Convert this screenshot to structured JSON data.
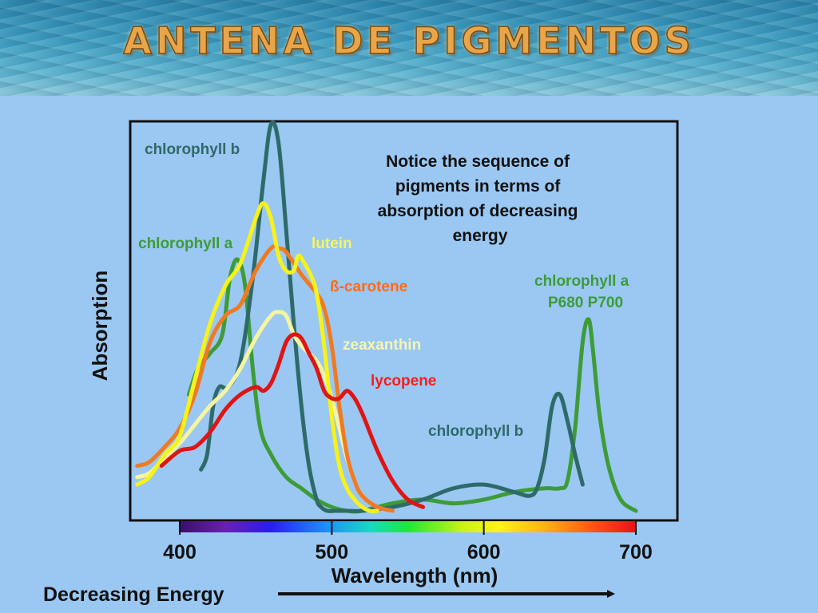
{
  "slide": {
    "title": "ANTENA DE PIGMENTOS"
  },
  "colors": {
    "chlorophyll_a": "#3e9b38",
    "chlorophyll_b": "#2f6a6a",
    "lutein": "#f7f21a",
    "beta_carotene": "#f07a22",
    "zeaxanthin": "#f6f4a0",
    "lycopene": "#e01414",
    "label_lutein": "#f5f560",
    "label_beta_carotene": "#ff6a1a",
    "label_zeaxanthin": "#f8f4b0",
    "label_lycopene": "#ff1a1a",
    "background": "#9ac8f2"
  },
  "chart_data": {
    "type": "line",
    "xlabel": "Wavelength (nm)",
    "ylabel": "Absorption",
    "xlim": [
      370,
      720
    ],
    "ylim": [
      0,
      100
    ],
    "x_ticks": [
      "400",
      "500",
      "600",
      "700"
    ],
    "energy_label": "Decreasing Energy",
    "annotation": "Notice the sequence of pigments in terms of absorption of decreasing energy",
    "annotation_lines": [
      "Notice the sequence of",
      "pigments in terms of",
      "absorption of decreasing",
      "energy"
    ],
    "series": [
      {
        "name": "chlorophyll a",
        "label_lines": [
          "chlorophyll a"
        ],
        "label_lines_2": [
          "chlorophyll a",
          "P680 P700"
        ],
        "x": [
          406,
          412,
          420,
          428,
          433,
          438,
          443,
          448,
          453,
          460,
          470,
          480,
          490,
          500,
          510,
          520,
          540,
          560,
          580,
          600,
          620,
          640,
          650,
          655,
          660,
          665,
          669,
          672,
          676,
          682,
          690,
          700
        ],
        "y": [
          31,
          38,
          42,
          47,
          62,
          67,
          60,
          38,
          22,
          15,
          9,
          6,
          3,
          1,
          0,
          0,
          2,
          3,
          2,
          3,
          5,
          6,
          6,
          8,
          22,
          45,
          51,
          42,
          26,
          12,
          3,
          0
        ]
      },
      {
        "name": "chlorophyll b",
        "label_lines": [
          "chlorophyll b"
        ],
        "label_lines_2": [
          "chlorophyll b"
        ],
        "x": [
          414,
          418,
          422,
          426,
          432,
          440,
          448,
          455,
          460,
          465,
          470,
          475,
          480,
          485,
          490,
          493,
          497,
          502,
          510,
          520,
          540,
          560,
          580,
          600,
          620,
          630,
          635,
          640,
          645,
          650,
          655,
          660,
          665
        ],
        "y": [
          11,
          15,
          28,
          33,
          33,
          40,
          62,
          88,
          103,
          98,
          75,
          50,
          28,
          12,
          3,
          1,
          0,
          0,
          0,
          0,
          1,
          3,
          6,
          7,
          5,
          4,
          6,
          14,
          28,
          31,
          24,
          15,
          7
        ]
      },
      {
        "name": "lutein",
        "label_lines": [
          "lutein"
        ],
        "x": [
          372,
          380,
          390,
          400,
          410,
          420,
          430,
          440,
          450,
          455,
          460,
          465,
          470,
          475,
          478,
          482,
          486,
          490,
          495,
          500,
          505,
          510,
          515,
          520,
          525,
          530
        ],
        "y": [
          7,
          9,
          15,
          20,
          35,
          50,
          60,
          66,
          78,
          82,
          78,
          68,
          64,
          64,
          68,
          66,
          63,
          58,
          44,
          25,
          12,
          6,
          3,
          1,
          0,
          0
        ]
      },
      {
        "name": "β-carotene",
        "label_lines": [
          "ß-carotene"
        ],
        "x": [
          372,
          380,
          390,
          400,
          410,
          420,
          430,
          440,
          450,
          460,
          465,
          470,
          480,
          490,
          495,
          500,
          505,
          510,
          515,
          520,
          530,
          540
        ],
        "y": [
          12,
          13,
          17,
          22,
          31,
          45,
          52,
          55,
          64,
          70,
          70,
          69,
          63,
          58,
          54,
          44,
          28,
          15,
          8,
          4,
          1,
          0
        ]
      },
      {
        "name": "zeaxanthin",
        "label_lines": [
          "zeaxanthin"
        ],
        "x": [
          372,
          380,
          390,
          400,
          410,
          420,
          430,
          440,
          450,
          460,
          465,
          470,
          475,
          480,
          485,
          490,
          495,
          500,
          505,
          510,
          515,
          520,
          530,
          540
        ],
        "y": [
          9,
          10,
          14,
          18,
          23,
          28,
          32,
          38,
          46,
          52,
          53,
          52,
          47,
          44,
          42,
          40,
          36,
          30,
          22,
          14,
          8,
          4,
          1,
          0
        ]
      },
      {
        "name": "lycopene",
        "label_lines": [
          "lycopene"
        ],
        "x": [
          388,
          400,
          410,
          420,
          430,
          440,
          450,
          455,
          460,
          465,
          470,
          475,
          480,
          485,
          490,
          495,
          500,
          505,
          510,
          515,
          520,
          530,
          540,
          550,
          560
        ],
        "y": [
          12,
          16,
          17,
          21,
          27,
          31,
          33,
          32,
          34,
          39,
          45,
          47,
          46,
          42,
          38,
          32,
          30,
          30,
          32,
          30,
          26,
          16,
          8,
          3,
          1
        ]
      }
    ]
  }
}
